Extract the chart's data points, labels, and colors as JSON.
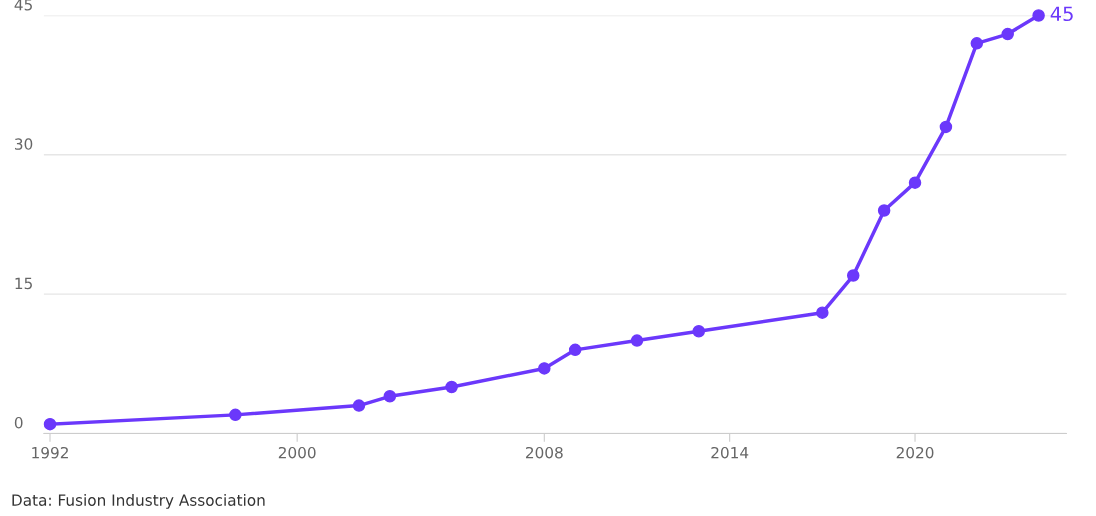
{
  "chart_data": {
    "type": "line",
    "x": [
      1992,
      1998,
      2002,
      2003,
      2005,
      2008,
      2009,
      2011,
      2013,
      2017,
      2018,
      2019,
      2020,
      2021,
      2022,
      2023,
      2024
    ],
    "series": [
      {
        "color": "#6b38fb",
        "values": [
          1,
          2,
          3,
          4,
          5,
          7,
          9,
          10,
          11,
          13,
          17,
          24,
          27,
          33,
          42,
          43,
          45
        ]
      }
    ],
    "xlim": [
      1991.8,
      2024.9
    ],
    "xticks": [
      1992,
      2000,
      2008,
      2014,
      2020
    ],
    "ylim": [
      0,
      45
    ],
    "yticks": [
      0,
      15,
      30,
      45
    ],
    "grid": "y",
    "marker": "circle",
    "line_style": "solid",
    "annotations": [
      {
        "text": "45",
        "x": 2024,
        "y": 45
      },
      "Data: Fusion Industry Association"
    ]
  }
}
